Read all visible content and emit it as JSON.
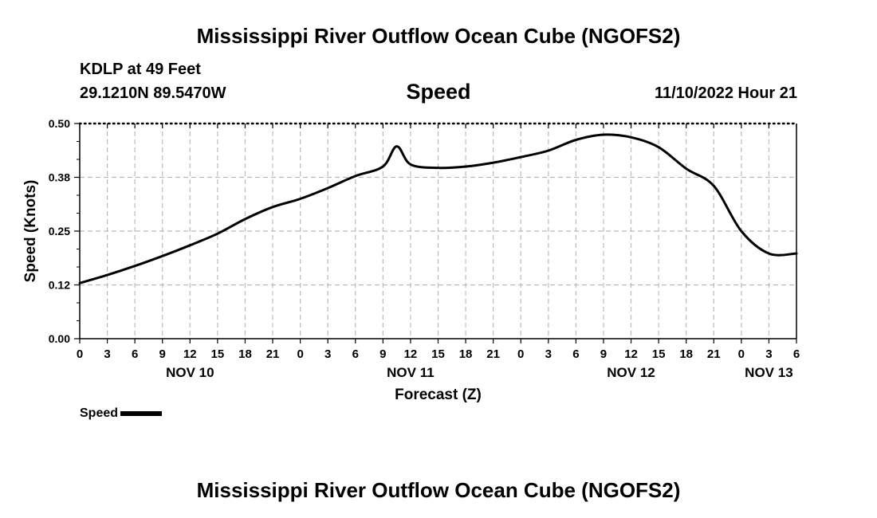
{
  "header": {
    "title": "Mississippi River Outflow Ocean Cube (NGOFS2)",
    "station": "KDLP at 49 Feet",
    "coords": "29.1210N  89.5470W",
    "parameter": "Speed",
    "datetime": "11/10/2022 Hour 21"
  },
  "footer": {
    "title": "Mississippi River Outflow Ocean Cube (NGOFS2)"
  },
  "chart_data": {
    "type": "line",
    "title": "Speed",
    "xlabel": "Forecast (Z)",
    "ylabel": "Speed (Knots)",
    "xlim": [
      0,
      78
    ],
    "ylim": [
      0,
      0.5
    ],
    "grid": true,
    "x_ticks": [
      0,
      3,
      6,
      9,
      12,
      15,
      18,
      21,
      24,
      27,
      30,
      33,
      36,
      39,
      42,
      45,
      48,
      51,
      54,
      57,
      60,
      63,
      66,
      69,
      72,
      75,
      78
    ],
    "x_tick_labels": [
      "0",
      "3",
      "6",
      "9",
      "12",
      "15",
      "18",
      "21",
      "0",
      "3",
      "6",
      "9",
      "12",
      "15",
      "18",
      "21",
      "0",
      "3",
      "6",
      "9",
      "12",
      "15",
      "18",
      "21",
      "0",
      "3",
      "6"
    ],
    "y_ticks": [
      0.0,
      0.125,
      0.25,
      0.375,
      0.5
    ],
    "y_tick_labels": [
      "0.00",
      "0.12",
      "0.25",
      "0.38",
      "0.50"
    ],
    "day_labels": [
      {
        "x": 12,
        "label": "NOV 10"
      },
      {
        "x": 36,
        "label": "NOV 11"
      },
      {
        "x": 60,
        "label": "NOV 12"
      },
      {
        "x": 75,
        "label": "NOV 13"
      }
    ],
    "legend": {
      "label": "Speed",
      "position": "bottom-left"
    },
    "series": [
      {
        "name": "Speed",
        "color": "#000000",
        "x": [
          0,
          3,
          6,
          9,
          12,
          15,
          18,
          21,
          24,
          27,
          30,
          33,
          34.5,
          36,
          39,
          42,
          45,
          48,
          51,
          54,
          57,
          60,
          63,
          66,
          69,
          72,
          75,
          78
        ],
        "values": [
          0.129,
          0.148,
          0.169,
          0.192,
          0.217,
          0.244,
          0.278,
          0.306,
          0.325,
          0.35,
          0.378,
          0.4,
          0.447,
          0.405,
          0.397,
          0.4,
          0.409,
          0.422,
          0.437,
          0.462,
          0.474,
          0.468,
          0.445,
          0.395,
          0.355,
          0.25,
          0.198,
          0.198
        ]
      }
    ]
  }
}
